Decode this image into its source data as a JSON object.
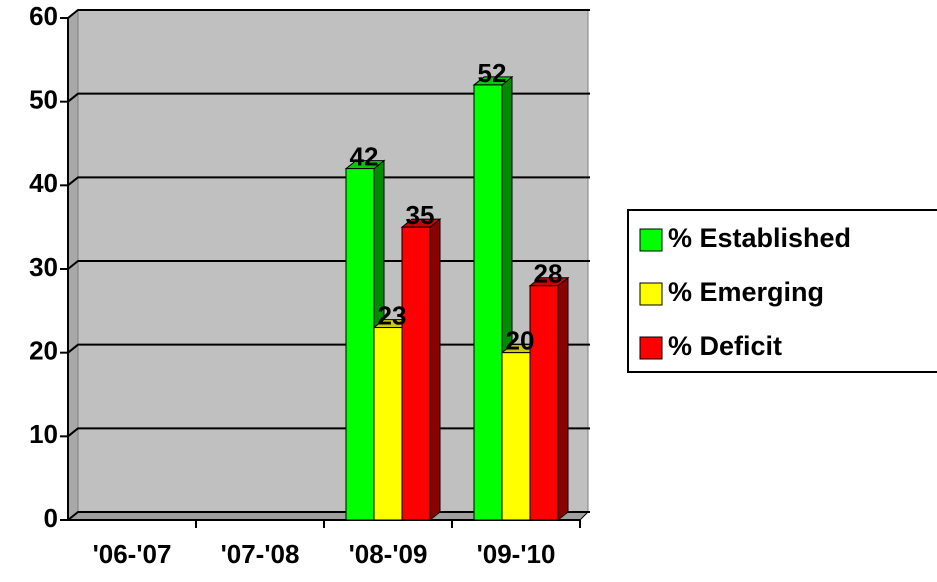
{
  "chart_data": {
    "type": "bar3d",
    "categories": [
      "'06-'07",
      "'07-'08",
      "'08-'09",
      "'09-'10"
    ],
    "series": [
      {
        "name": "% Established",
        "color": "#00ff00",
        "values": [
          null,
          null,
          42,
          52
        ]
      },
      {
        "name": "% Emerging",
        "color": "#ffff00",
        "values": [
          null,
          null,
          23,
          20
        ]
      },
      {
        "name": "% Deficit",
        "color": "#ff0000",
        "values": [
          null,
          null,
          35,
          28
        ]
      }
    ],
    "ylim": [
      0,
      60
    ],
    "yticks": [
      0,
      10,
      20,
      30,
      40,
      50,
      60
    ],
    "grid": true,
    "legend": "right"
  }
}
